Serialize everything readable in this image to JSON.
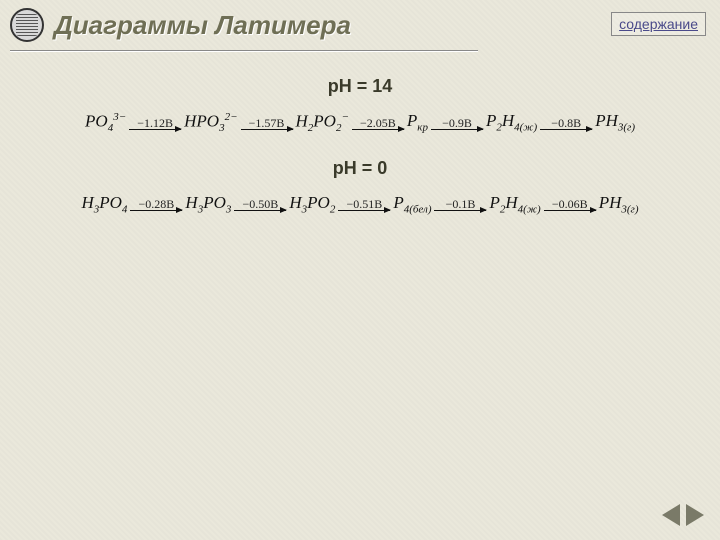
{
  "header": {
    "title": "Диаграммы Латимера",
    "toc_link": "содержание"
  },
  "sections": {
    "ph14_label": "рН = 14",
    "ph0_label": "рН = 0"
  },
  "diagram_ph14": {
    "species": [
      {
        "formula_html": "PO",
        "sub": "4",
        "sup": "3−"
      },
      {
        "formula_html": "HPO",
        "sub": "3",
        "sup": "2−"
      },
      {
        "formula_html": "H<sub class='sub'>2</sub>PO",
        "sub": "2",
        "sup": "−"
      },
      {
        "formula_html": "P",
        "phase": "кр"
      },
      {
        "formula_html": "P<sub class='sub'>2</sub>H",
        "sub": "4",
        "phase": "(ж)"
      },
      {
        "formula_html": "PH",
        "sub": "3",
        "phase": "(г)"
      }
    ],
    "potentials": [
      "−1.12B",
      "−1.57B",
      "−2.05B",
      "−0.9B",
      "−0.8B"
    ]
  },
  "diagram_ph0": {
    "species": [
      {
        "formula_html": "H<sub class='sub'>3</sub>PO",
        "sub": "4"
      },
      {
        "formula_html": "H<sub class='sub'>3</sub>PO",
        "sub": "3"
      },
      {
        "formula_html": "H<sub class='sub'>3</sub>PO",
        "sub": "2"
      },
      {
        "formula_html": "P",
        "sub": "4",
        "phase": "(бел)"
      },
      {
        "formula_html": "P<sub class='sub'>2</sub>H",
        "sub": "4",
        "phase": "(ж)"
      },
      {
        "formula_html": "PH",
        "sub": "3",
        "phase": "(г)"
      }
    ],
    "potentials": [
      "−0.28B",
      "−0.50B",
      "−0.51B",
      "−0.1B",
      "−0.06B"
    ]
  },
  "styling": {
    "bg_color": "#eae8db",
    "title_color": "#6f6f55",
    "arrow_color": "#111111",
    "nav_arrow_color": "#7a7a68",
    "font_serif": "Times New Roman",
    "font_sans": "Arial"
  }
}
